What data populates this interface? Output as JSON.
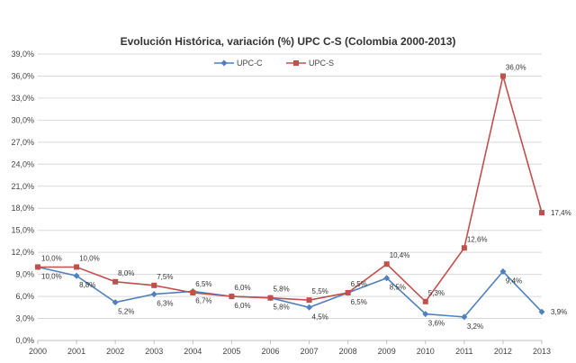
{
  "chart_data": {
    "type": "line",
    "title": "Evolución Histórica, variación (%) UPC C-S (Colombia 2000-2013)",
    "xlabel": "",
    "ylabel": "",
    "x": [
      "2000",
      "2001",
      "2002",
      "2003",
      "2004",
      "2005",
      "2006",
      "2007",
      "2008",
      "2009",
      "2010",
      "2011",
      "2012",
      "2013"
    ],
    "ylim": [
      0,
      39
    ],
    "y_ticks": [
      0,
      3,
      6,
      9,
      12,
      15,
      18,
      21,
      24,
      27,
      30,
      33,
      36,
      39
    ],
    "y_tick_labels": [
      "0,0%",
      "3,0%",
      "6,0%",
      "9,0%",
      "12,0%",
      "15,0%",
      "18,0%",
      "21,0%",
      "24,0%",
      "27,0%",
      "30,0%",
      "33,0%",
      "36,0%",
      "39,0%"
    ],
    "grid": true,
    "legend_position": "top-center",
    "series": [
      {
        "name": "UPC-C",
        "color": "#4f81bd",
        "marker": "diamond",
        "values": [
          10.0,
          8.8,
          5.2,
          6.3,
          6.7,
          6.0,
          5.8,
          4.5,
          6.5,
          8.5,
          3.6,
          3.2,
          9.4,
          3.9
        ],
        "labels": [
          "10,0%",
          "8,8%",
          "5,2%",
          "6,3%",
          "6,7%",
          "6,0%",
          "5,8%",
          "4,5%",
          "6,5%",
          "8,5%",
          "3,6%",
          "3,2%",
          "9,4%",
          "3,9%"
        ]
      },
      {
        "name": "UPC-S",
        "color": "#c0504d",
        "marker": "square",
        "values": [
          10.0,
          10.0,
          8.0,
          7.5,
          6.5,
          6.0,
          5.8,
          5.5,
          6.5,
          10.4,
          5.3,
          12.6,
          36.0,
          17.4
        ],
        "labels": [
          "10,0%",
          "10,0%",
          "8,0%",
          "7,5%",
          "6,5%",
          "6,0%",
          "5,8%",
          "5,5%",
          "6,5%",
          "10,4%",
          "5,3%",
          "12,6%",
          "36,0%",
          "17,4%"
        ]
      }
    ]
  }
}
